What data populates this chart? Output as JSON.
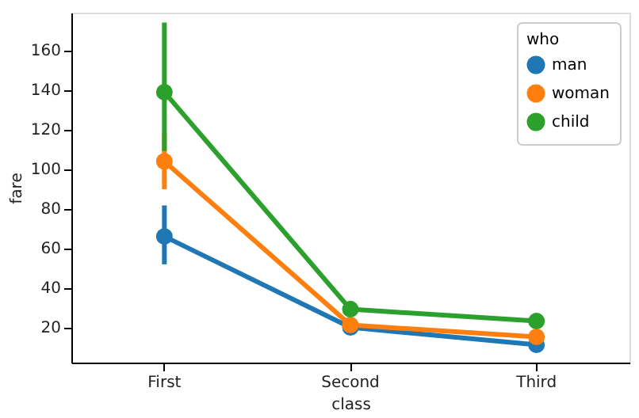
{
  "chart_data": {
    "type": "line",
    "xlabel": "class",
    "ylabel": "fare",
    "legend_title": "who",
    "categories": [
      "First",
      "Second",
      "Third"
    ],
    "series": [
      {
        "name": "man",
        "color": "#1f77b4",
        "values": [
          65.8,
          19.8,
          11
        ],
        "errors": [
          [
            51.7,
            81.5
          ],
          null,
          [
            10,
            12
          ]
        ]
      },
      {
        "name": "woman",
        "color": "#ff7f0e",
        "values": [
          103.8,
          21,
          15
        ],
        "errors": [
          [
            89.7,
            118
          ],
          [
            18,
            24
          ],
          [
            13,
            17
          ]
        ]
      },
      {
        "name": "child",
        "color": "#2ca02c",
        "values": [
          138.8,
          29,
          23
        ],
        "errors": [
          [
            109,
            174
          ],
          [
            25,
            33
          ],
          [
            21,
            26
          ]
        ]
      }
    ],
    "ylim": [
      2,
      179
    ],
    "yticks": [
      20,
      40,
      60,
      80,
      100,
      120,
      140,
      160
    ],
    "grid": false,
    "legend": "top right",
    "marker": "circle",
    "line_style": "solid"
  }
}
